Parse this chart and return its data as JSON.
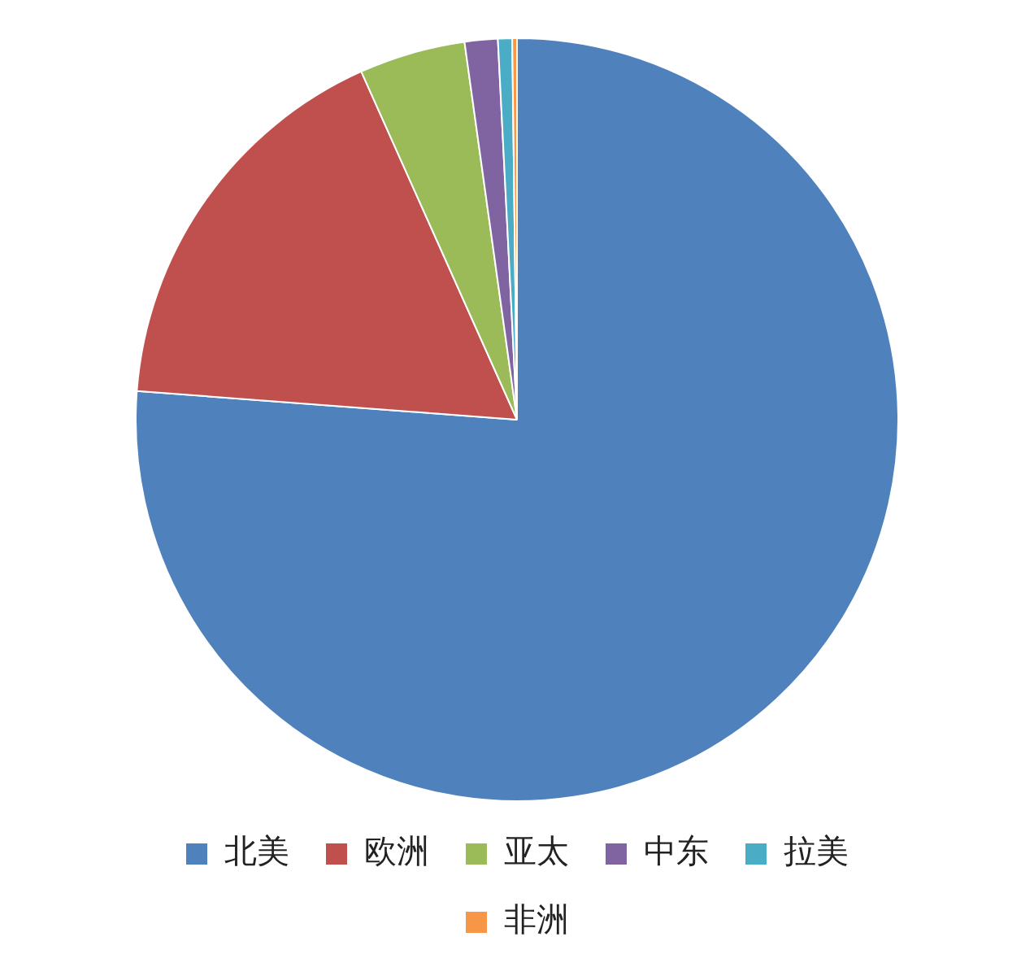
{
  "chart_data": {
    "type": "pie",
    "categories": [
      "北美",
      "欧洲",
      "亚太",
      "中东",
      "拉美",
      "非洲"
    ],
    "values": [
      76.2,
      17.1,
      4.5,
      1.4,
      0.6,
      0.2
    ],
    "colors": [
      "#4f81bd",
      "#c0504d",
      "#9bbb59",
      "#8064a2",
      "#4bacc6",
      "#f79646"
    ],
    "legend": "bottom"
  }
}
